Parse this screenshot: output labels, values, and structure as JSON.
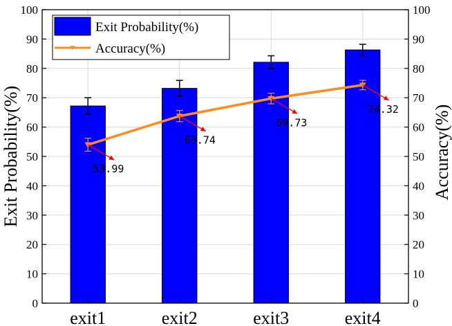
{
  "chart_data": {
    "type": "bar+line",
    "categories": [
      "exit1",
      "exit2",
      "exit3",
      "exit4"
    ],
    "series": [
      {
        "name": "Exit Probability(%)",
        "kind": "bar",
        "axis": "left",
        "values": [
          67.2,
          73.2,
          82.1,
          86.3
        ],
        "errors": [
          2.8,
          2.7,
          2.2,
          1.9
        ],
        "color": "#0000ff"
      },
      {
        "name": "Accuracy(%)",
        "kind": "line",
        "axis": "right",
        "values": [
          53.99,
          63.74,
          69.73,
          74.32
        ],
        "errors": [
          2.2,
          1.9,
          1.8,
          1.6
        ],
        "color": "#ff8c1a",
        "marker": "triangle-down"
      }
    ],
    "data_labels": [
      "53.99",
      "63.74",
      "69.73",
      "74.32"
    ],
    "label_arrow_color": "#ff0000",
    "ylabel_left": "Exit Probability(%)",
    "ylabel_right": "Accuracy(%)",
    "ylim": [
      0,
      100
    ],
    "yticks": [
      "0",
      "10",
      "20",
      "30",
      "40",
      "50",
      "60",
      "70",
      "80",
      "90",
      "100"
    ],
    "grid": true,
    "legend_position": "top-left"
  }
}
